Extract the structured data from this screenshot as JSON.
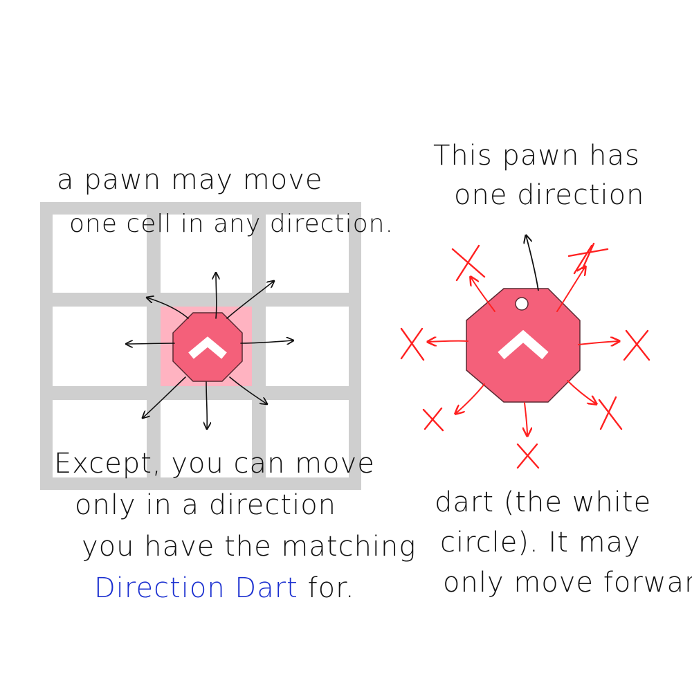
{
  "left_caption": {
    "line1": "a pawn may move",
    "line2": "one cell in any direction."
  },
  "left_rule": {
    "line1": "Except, you can move",
    "line2": "only in a direction",
    "line3": "you have the matching",
    "highlight": "Direction Dart",
    "tail": " for."
  },
  "right_caption": {
    "line1": "This pawn has",
    "line2": "one direction"
  },
  "right_rule": {
    "line1": "dart (the white",
    "line2": "circle). It may",
    "line3": "only move forward."
  },
  "colors": {
    "grid": "#cfcfcf",
    "highlight_cell": "#ffb3c1",
    "pawn": "#f4607a",
    "pawn_outline": "#5a2a33",
    "forbidden": "#ff2020",
    "allowed": "#111111",
    "dart": "#ffffff"
  },
  "icons": [
    "pawn-octagon-icon",
    "chevron-up-icon",
    "direction-dart-icon",
    "arrow-icon",
    "cross-icon"
  ]
}
